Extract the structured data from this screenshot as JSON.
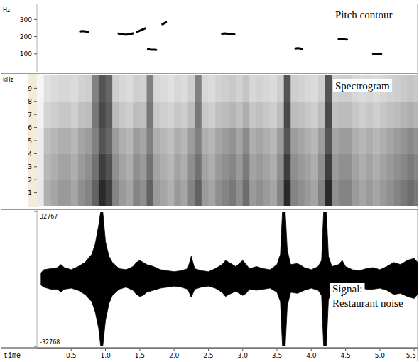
{
  "chart_data": [
    {
      "type": "line",
      "title": "Pitch contour",
      "y_label": "Hz",
      "color": "#000000",
      "tick_labels": "y",
      "xlim": [
        0,
        5.55
      ],
      "ylim": [
        0,
        380
      ],
      "yticks": [
        100,
        200,
        300
      ],
      "x": [
        0.63,
        0.66,
        0.69,
        0.72,
        0.75,
        0.97,
        1.19,
        1.22,
        1.25,
        1.28,
        1.31,
        1.34,
        1.37,
        1.4,
        1.43,
        1.46,
        1.49,
        1.52,
        1.55,
        1.58,
        1.6,
        1.62,
        1.65,
        1.68,
        1.71,
        1.74,
        1.78,
        1.83,
        1.86,
        1.88,
        2.3,
        2.7,
        2.73,
        2.76,
        2.79,
        2.82,
        2.85,
        2.88,
        3.3,
        3.77,
        3.8,
        3.83,
        3.86,
        4.1,
        4.4,
        4.43,
        4.46,
        4.49,
        4.52,
        4.7,
        4.9,
        4.93,
        4.96,
        4.99,
        5.02
      ],
      "values": [
        230,
        232,
        231,
        229,
        227,
        null,
        218,
        216,
        214,
        212,
        212,
        214,
        216,
        219,
        null,
        228,
        233,
        238,
        243,
        248,
        null,
        127,
        125,
        124,
        124,
        123,
        null,
        272,
        278,
        284,
        null,
        216,
        219,
        218,
        216,
        217,
        215,
        213,
        null,
        131,
        133,
        132,
        129,
        null,
        185,
        187,
        186,
        184,
        183,
        null,
        101,
        101,
        100,
        100,
        100
      ]
    },
    {
      "type": "heatmap",
      "title": "Spectrogram",
      "y_label": "kHz",
      "tick_labels": "y",
      "xlim": [
        0,
        5.55
      ],
      "ylim": [
        0,
        10
      ],
      "yticks": [
        1,
        2,
        3,
        4,
        5,
        6,
        7,
        8,
        9
      ],
      "zlim": [
        0,
        1
      ],
      "x_edges": [
        0,
        0.1,
        0.2,
        0.3,
        0.4,
        0.5,
        0.6,
        0.7,
        0.8,
        0.9,
        1,
        1.1,
        1.2,
        1.3,
        1.4,
        1.5,
        1.6,
        1.7,
        1.8,
        1.9,
        2,
        2.1,
        2.2,
        2.3,
        2.4,
        2.5,
        2.6,
        2.7,
        2.8,
        2.9,
        3,
        3.1,
        3.2,
        3.3,
        3.4,
        3.5,
        3.6,
        3.7,
        3.8,
        3.9,
        4,
        4.1,
        4.2,
        4.3,
        4.4,
        4.5,
        4.6,
        4.7,
        4.8,
        4.9,
        5,
        5.1,
        5.2,
        5.3,
        5.4,
        5.5,
        5.6
      ],
      "y_edges": [
        0,
        2,
        4,
        6,
        8,
        10
      ],
      "cells": [
        [
          0.1,
          0.35,
          0.4,
          0.45,
          0.45,
          0.4,
          0.5,
          0.55,
          0.7,
          0.95,
          0.85,
          0.55,
          0.45,
          0.4,
          0.55,
          0.5,
          0.7,
          0.45,
          0.4,
          0.35,
          0.45,
          0.4,
          0.55,
          0.7,
          0.45,
          0.4,
          0.5,
          0.55,
          0.6,
          0.5,
          0.65,
          0.45,
          0.5,
          0.45,
          0.4,
          0.55,
          0.95,
          0.55,
          0.5,
          0.45,
          0.4,
          0.55,
          0.95,
          0.5,
          0.55,
          0.55,
          0.45,
          0.4,
          0.45,
          0.4,
          0.45,
          0.5,
          0.55,
          0.6,
          0.65,
          0.6
        ],
        [
          0.09,
          0.32,
          0.36,
          0.41,
          0.41,
          0.36,
          0.45,
          0.5,
          0.63,
          0.86,
          0.77,
          0.5,
          0.41,
          0.36,
          0.5,
          0.45,
          0.63,
          0.41,
          0.36,
          0.32,
          0.41,
          0.36,
          0.5,
          0.63,
          0.41,
          0.36,
          0.45,
          0.5,
          0.54,
          0.45,
          0.59,
          0.41,
          0.45,
          0.41,
          0.36,
          0.5,
          0.86,
          0.5,
          0.45,
          0.41,
          0.36,
          0.5,
          0.86,
          0.45,
          0.5,
          0.5,
          0.41,
          0.36,
          0.41,
          0.36,
          0.41,
          0.45,
          0.5,
          0.54,
          0.59,
          0.54
        ],
        [
          0.08,
          0.28,
          0.32,
          0.36,
          0.36,
          0.32,
          0.4,
          0.44,
          0.56,
          0.76,
          0.68,
          0.44,
          0.36,
          0.32,
          0.44,
          0.4,
          0.56,
          0.36,
          0.32,
          0.28,
          0.36,
          0.32,
          0.44,
          0.56,
          0.36,
          0.32,
          0.4,
          0.44,
          0.48,
          0.4,
          0.52,
          0.36,
          0.4,
          0.36,
          0.32,
          0.44,
          0.76,
          0.44,
          0.4,
          0.36,
          0.32,
          0.44,
          0.76,
          0.4,
          0.44,
          0.44,
          0.36,
          0.32,
          0.36,
          0.32,
          0.36,
          0.4,
          0.44,
          0.48,
          0.52,
          0.48
        ],
        [
          0.06,
          0.19,
          0.22,
          0.25,
          0.25,
          0.22,
          0.28,
          0.3,
          0.6,
          0.81,
          0.72,
          0.3,
          0.25,
          0.22,
          0.3,
          0.28,
          0.6,
          0.25,
          0.22,
          0.19,
          0.25,
          0.22,
          0.3,
          0.6,
          0.25,
          0.22,
          0.28,
          0.3,
          0.33,
          0.28,
          0.36,
          0.25,
          0.28,
          0.25,
          0.22,
          0.3,
          0.81,
          0.3,
          0.28,
          0.25,
          0.22,
          0.3,
          0.81,
          0.28,
          0.3,
          0.3,
          0.25,
          0.22,
          0.25,
          0.22,
          0.25,
          0.28,
          0.3,
          0.33,
          0.36,
          0.33
        ],
        [
          0.04,
          0.14,
          0.16,
          0.18,
          0.18,
          0.16,
          0.2,
          0.22,
          0.56,
          0.76,
          0.68,
          0.22,
          0.18,
          0.16,
          0.22,
          0.2,
          0.56,
          0.18,
          0.16,
          0.14,
          0.18,
          0.16,
          0.22,
          0.56,
          0.18,
          0.16,
          0.2,
          0.22,
          0.24,
          0.2,
          0.26,
          0.18,
          0.2,
          0.18,
          0.16,
          0.22,
          0.76,
          0.22,
          0.2,
          0.18,
          0.16,
          0.22,
          0.76,
          0.2,
          0.22,
          0.22,
          0.18,
          0.16,
          0.18,
          0.16,
          0.18,
          0.2,
          0.22,
          0.24,
          0.26,
          0.24
        ]
      ]
    },
    {
      "type": "area",
      "title": "Signal:",
      "subtitle": "Restaurant noise",
      "x_label": "time",
      "color": "#000000",
      "xlim": [
        0,
        5.55
      ],
      "ylim": [
        -32768,
        32767
      ],
      "yticks": [
        -32768,
        32767
      ],
      "xticks": [
        0.5,
        {
          "value": 1,
          "label": "1.0"
        },
        1.5,
        {
          "value": 2,
          "label": "2.0"
        },
        2.5,
        {
          "value": 3,
          "label": "3.0"
        },
        3.5,
        {
          "value": 4,
          "label": "4.0"
        },
        4.5,
        {
          "value": 5,
          "label": "5.0"
        },
        5.5
      ],
      "x": [
        0.06,
        0.1,
        0.2,
        0.3,
        0.35,
        0.4,
        0.5,
        0.6,
        0.7,
        0.8,
        0.85,
        0.9,
        0.93,
        0.96,
        1.0,
        1.05,
        1.1,
        1.2,
        1.3,
        1.4,
        1.45,
        1.5,
        1.55,
        1.6,
        1.7,
        1.8,
        1.9,
        2.0,
        2.1,
        2.2,
        2.25,
        2.3,
        2.4,
        2.5,
        2.6,
        2.7,
        2.75,
        2.8,
        2.9,
        3.0,
        3.05,
        3.1,
        3.2,
        3.3,
        3.4,
        3.5,
        3.55,
        3.58,
        3.62,
        3.65,
        3.7,
        3.8,
        3.9,
        4.0,
        4.1,
        4.15,
        4.18,
        4.22,
        4.25,
        4.3,
        4.4,
        4.45,
        4.5,
        4.6,
        4.7,
        4.8,
        4.9,
        5.0,
        5.1,
        5.2,
        5.3,
        5.4,
        5.5,
        5.55
      ],
      "series": [
        {
          "values": [
            3000,
            4500,
            5000,
            5500,
            7000,
            5500,
            4500,
            6000,
            8000,
            12000,
            17000,
            26000,
            32767,
            32767,
            18000,
            11000,
            8000,
            5000,
            4500,
            6000,
            8000,
            9000,
            8000,
            7000,
            6000,
            4500,
            4000,
            3500,
            4000,
            5000,
            11000,
            5000,
            4000,
            3500,
            5000,
            7000,
            9000,
            8000,
            6000,
            9000,
            7000,
            5000,
            6000,
            5000,
            4500,
            7000,
            12000,
            32767,
            32767,
            14000,
            7000,
            7500,
            5500,
            4500,
            6000,
            9000,
            32767,
            32767,
            11000,
            6000,
            7000,
            9000,
            6000,
            4500,
            4000,
            5000,
            5500,
            4500,
            6000,
            8000,
            7000,
            9000,
            10000,
            8000
          ]
        },
        {
          "values": [
            -3000,
            -4000,
            -5000,
            -5000,
            -6500,
            -5000,
            -4500,
            -5500,
            -7500,
            -11000,
            -16000,
            -24000,
            -32768,
            -32768,
            -20000,
            -12000,
            -8000,
            -5000,
            -4000,
            -5500,
            -7500,
            -8500,
            -8000,
            -6500,
            -5500,
            -4500,
            -4000,
            -3500,
            -4000,
            -5000,
            -9000,
            -5000,
            -4000,
            -3500,
            -4500,
            -6500,
            -8500,
            -7500,
            -6000,
            -8000,
            -7000,
            -5000,
            -5500,
            -5000,
            -4500,
            -6500,
            -11000,
            -32768,
            -32768,
            -13000,
            -6500,
            -7000,
            -5500,
            -4500,
            -5500,
            -8000,
            -32768,
            -32768,
            -10000,
            -6000,
            -6500,
            -8500,
            -6000,
            -4500,
            -4000,
            -5000,
            -5000,
            -4500,
            -5500,
            -7500,
            -7000,
            -8500,
            -9500,
            -7500
          ]
        }
      ]
    }
  ]
}
